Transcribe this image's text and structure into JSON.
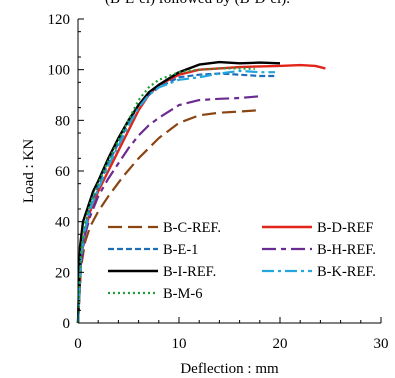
{
  "caption": "(B-E-el) followed by (B-D-el).",
  "chart_data": {
    "type": "line",
    "title": "",
    "xlabel": "Deflection : mm",
    "ylabel": "Load : KN",
    "xlim": [
      0,
      30
    ],
    "ylim": [
      0,
      120
    ],
    "xticks": [
      0,
      10,
      20,
      30
    ],
    "yticks": [
      0,
      20,
      40,
      60,
      80,
      100,
      120
    ],
    "grid": false,
    "legend_position": "bottom-center",
    "series": [
      {
        "name": "B-C-REF.",
        "color": "#8b4513",
        "dash": "14,6",
        "width": 2.2,
        "x": [
          0,
          0.3,
          0.7,
          1.2,
          2,
          3,
          4.5,
          6,
          8,
          10,
          12,
          14,
          16,
          18
        ],
        "y": [
          0,
          22,
          32,
          38,
          44,
          50,
          58,
          65,
          73,
          79,
          82,
          83,
          83.5,
          84
        ]
      },
      {
        "name": "B-D-REF",
        "color": "#e3241b",
        "dash": "",
        "width": 2.4,
        "x": [
          0,
          0.3,
          0.7,
          1.2,
          2,
          3,
          4,
          5,
          6,
          7,
          8,
          10,
          12,
          14,
          16,
          18,
          20,
          22,
          23.5,
          24.5
        ],
        "y": [
          0,
          25,
          36,
          44,
          52,
          60,
          68,
          76,
          84,
          90,
          94,
          98,
          100,
          100.5,
          101,
          101.3,
          101.5,
          101.8,
          101.5,
          100.5
        ]
      },
      {
        "name": "B-E-1",
        "color": "#1f6fb8",
        "dash": "6,3",
        "width": 2.2,
        "x": [
          0,
          0.3,
          0.7,
          1.2,
          2,
          3,
          4,
          5,
          6,
          7,
          8,
          10,
          12,
          14,
          16,
          18,
          19.5
        ],
        "y": [
          0,
          26,
          38,
          46,
          54,
          63,
          71,
          79,
          86,
          90,
          93,
          97,
          98,
          98.5,
          98,
          97.5,
          97.5
        ]
      },
      {
        "name": "B-H-REF.",
        "color": "#6a2c91",
        "dash": "14,5,5,5",
        "width": 2.2,
        "x": [
          0,
          0.3,
          0.7,
          1.2,
          2,
          3,
          4,
          5,
          6,
          7,
          8,
          10,
          12,
          14,
          16,
          18
        ],
        "y": [
          0,
          24,
          35,
          42,
          50,
          57,
          63,
          69,
          74,
          78,
          81,
          86,
          88,
          88.5,
          88.8,
          89.5
        ]
      },
      {
        "name": "B-I-REF.",
        "color": "#000000",
        "dash": "",
        "width": 2.4,
        "x": [
          0,
          0.2,
          0.5,
          1,
          1.5,
          2,
          3,
          4,
          5,
          6,
          7,
          8,
          10,
          12,
          14,
          16,
          18,
          20
        ],
        "y": [
          0,
          30,
          40,
          46,
          52,
          56,
          65,
          73,
          80,
          86,
          91,
          94,
          99,
          102,
          103,
          102.5,
          102.8,
          102.5
        ]
      },
      {
        "name": "B-K-REF.",
        "color": "#22a6dd",
        "dash": "12,4,3,4",
        "width": 2.2,
        "x": [
          0,
          0.3,
          0.7,
          1.2,
          2,
          3,
          4,
          5,
          6,
          7,
          8,
          10,
          12,
          14,
          16,
          18,
          19.5
        ],
        "y": [
          0,
          26,
          37,
          45,
          53,
          62,
          70,
          78,
          85,
          90,
          93,
          96,
          97,
          98.5,
          99.5,
          99,
          99
        ]
      },
      {
        "name": "B-M-6",
        "color": "#1f9e3a",
        "dash": "2,3",
        "width": 2.2,
        "x": [
          0,
          0.3,
          0.7,
          1.2,
          2,
          3,
          4,
          5,
          6,
          7,
          8,
          10,
          12,
          14,
          16,
          17.5
        ],
        "y": [
          0,
          28,
          40,
          47,
          55,
          64,
          72,
          80,
          88,
          93,
          96,
          99,
          100,
          100.5,
          100.5,
          100.3
        ]
      }
    ]
  }
}
